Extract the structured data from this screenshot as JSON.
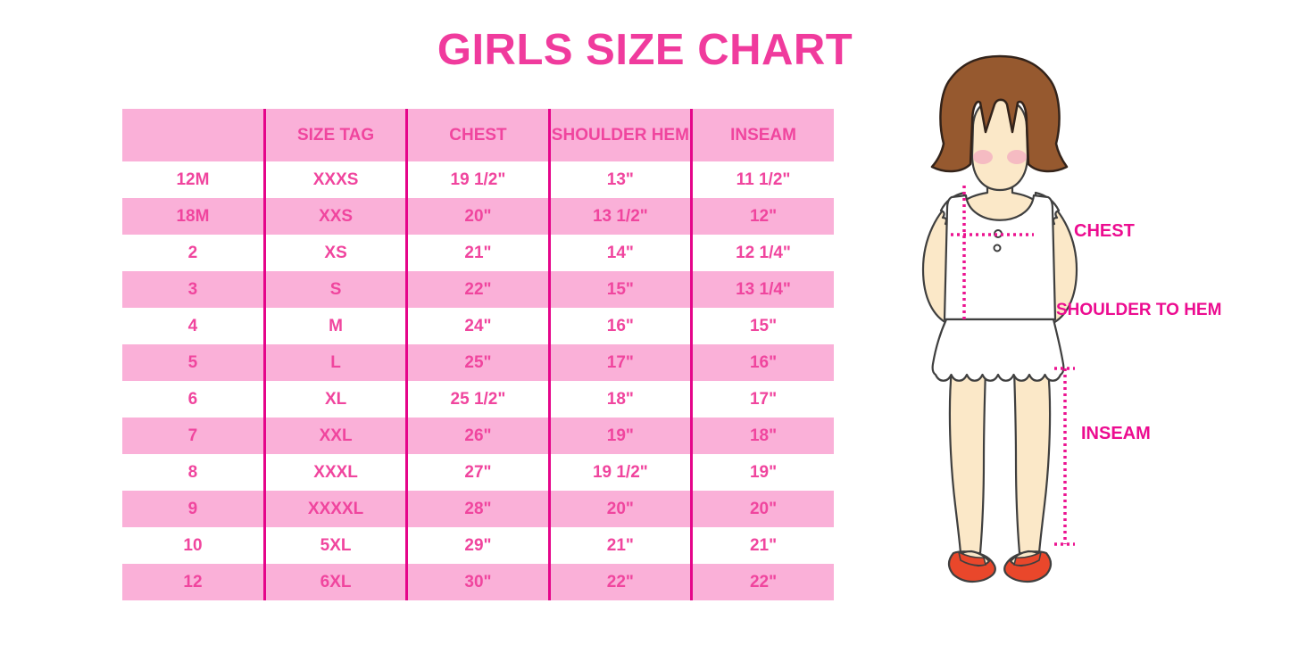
{
  "title": "GIRLS SIZE CHART",
  "chart_data": {
    "type": "table",
    "title": "GIRLS SIZE CHART",
    "columns": [
      "",
      "SIZE TAG",
      "CHEST",
      "SHOULDER HEM",
      "INSEAM"
    ],
    "rows": [
      [
        "12M",
        "XXXS",
        "19 1/2\"",
        "13\"",
        "11 1/2\""
      ],
      [
        "18M",
        "XXS",
        "20\"",
        "13 1/2\"",
        "12\""
      ],
      [
        "2",
        "XS",
        "21\"",
        "14\"",
        "12 1/4\""
      ],
      [
        "3",
        "S",
        "22\"",
        "15\"",
        "13 1/4\""
      ],
      [
        "4",
        "M",
        "24\"",
        "16\"",
        "15\""
      ],
      [
        "5",
        "L",
        "25\"",
        "17\"",
        "16\""
      ],
      [
        "6",
        "XL",
        "25 1/2\"",
        "18\"",
        "17\""
      ],
      [
        "7",
        "XXL",
        "26\"",
        "19\"",
        "18\""
      ],
      [
        "8",
        "XXXL",
        "27\"",
        "19 1/2\"",
        "19\""
      ],
      [
        "9",
        "XXXXL",
        "28\"",
        "20\"",
        "20\""
      ],
      [
        "10",
        "5XL",
        "29\"",
        "21\"",
        "21\""
      ],
      [
        "12",
        "6XL",
        "30\"",
        "22\"",
        "22\""
      ]
    ]
  },
  "diagram": {
    "labels": {
      "chest": "CHEST",
      "shoulder_to_hem": "SHOULDER TO HEM",
      "inseam": "INSEAM"
    }
  },
  "colors": {
    "title_pink": "#F03B9D",
    "table_text_pink": "#F0459E",
    "row_pink": "#FAB0D8",
    "divider_pink": "#E5058A",
    "label_magenta": "#EC0C90",
    "dotted_line_pink": "#EC1390",
    "hair_brown": "#96592F",
    "skin": "#FBE8C8",
    "blush": "#F3A9C0",
    "shoe_red": "#E9472B"
  }
}
